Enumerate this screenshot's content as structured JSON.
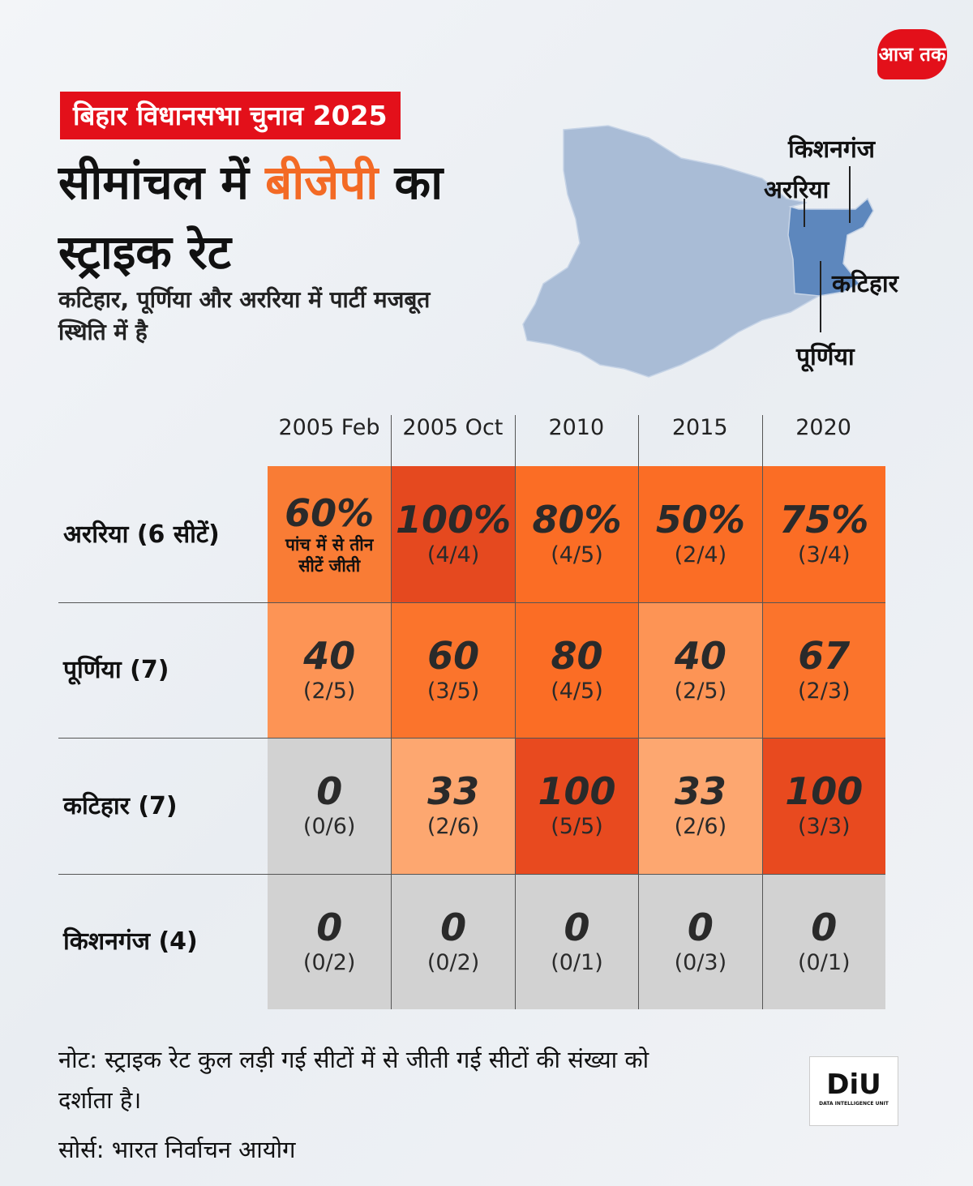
{
  "header": {
    "badge": "बिहार विधानसभा चुनाव 2025",
    "title": {
      "before": "सीमांचल में ",
      "highlight": "बीजेपी",
      "after": " का स्ट्राइक रेट"
    },
    "subtitle": "कटिहार, पूर्णिया और अररिया में पार्टी मजबूत स्थिति में है",
    "logo": "आज तक"
  },
  "map": {
    "labels": [
      "किशनगंज",
      "अररिया",
      "कटिहार",
      "पूर्णिया"
    ]
  },
  "table": {
    "columns": [
      "2005 Feb",
      "2005 Oct",
      "2010",
      "2015",
      "2020"
    ],
    "rows": [
      {
        "label": "अररिया (6 सीटें)",
        "cells": [
          {
            "value": "60%",
            "detail": "",
            "note": "पांच में से तीन सीटें जीती",
            "color": "#f97c35"
          },
          {
            "value": "100%",
            "detail": "(4/4)",
            "color": "#e5491f"
          },
          {
            "value": "80%",
            "detail": "(4/5)",
            "color": "#fb6d25"
          },
          {
            "value": "50%",
            "detail": "(2/4)",
            "color": "#fb6d25"
          },
          {
            "value": "75%",
            "detail": "(3/4)",
            "color": "#fb6d25"
          }
        ]
      },
      {
        "label": "पूर्णिया (7)",
        "cells": [
          {
            "value": "40",
            "detail": "(2/5)",
            "color": "#fd9455"
          },
          {
            "value": "60",
            "detail": "(3/5)",
            "color": "#fb742c"
          },
          {
            "value": "80",
            "detail": "(4/5)",
            "color": "#fb6d25"
          },
          {
            "value": "40",
            "detail": "(2/5)",
            "color": "#fd9455"
          },
          {
            "value": "67",
            "detail": "(2/3)",
            "color": "#fb742c"
          }
        ]
      },
      {
        "label": "कटिहार (7)",
        "cells": [
          {
            "value": "0",
            "detail": "(0/6)",
            "color": "#d2d2d2"
          },
          {
            "value": "33",
            "detail": "(2/6)",
            "color": "#fda770"
          },
          {
            "value": "100",
            "detail": "(5/5)",
            "color": "#e84a1f"
          },
          {
            "value": "33",
            "detail": "(2/6)",
            "color": "#fda770"
          },
          {
            "value": "100",
            "detail": "(3/3)",
            "color": "#e84a1f"
          }
        ]
      },
      {
        "label": "किशनगंज (4)",
        "cells": [
          {
            "value": "0",
            "detail": "(0/2)",
            "color": "#d2d2d2"
          },
          {
            "value": "0",
            "detail": "(0/2)",
            "color": "#d2d2d2"
          },
          {
            "value": "0",
            "detail": "(0/1)",
            "color": "#d2d2d2"
          },
          {
            "value": "0",
            "detail": "(0/3)",
            "color": "#d2d2d2"
          },
          {
            "value": "0",
            "detail": "(0/1)",
            "color": "#d2d2d2"
          }
        ]
      }
    ]
  },
  "footer": {
    "note": "नोट: स्ट्राइक रेट कुल लड़ी गई सीटों में से जीती गई सीटों की संख्या को दर्शाता है।",
    "source": "सोर्स: भारत निर्वाचन आयोग",
    "diu": {
      "mark": "DiU",
      "text": "DATA INTELLIGENCE UNIT"
    }
  }
}
